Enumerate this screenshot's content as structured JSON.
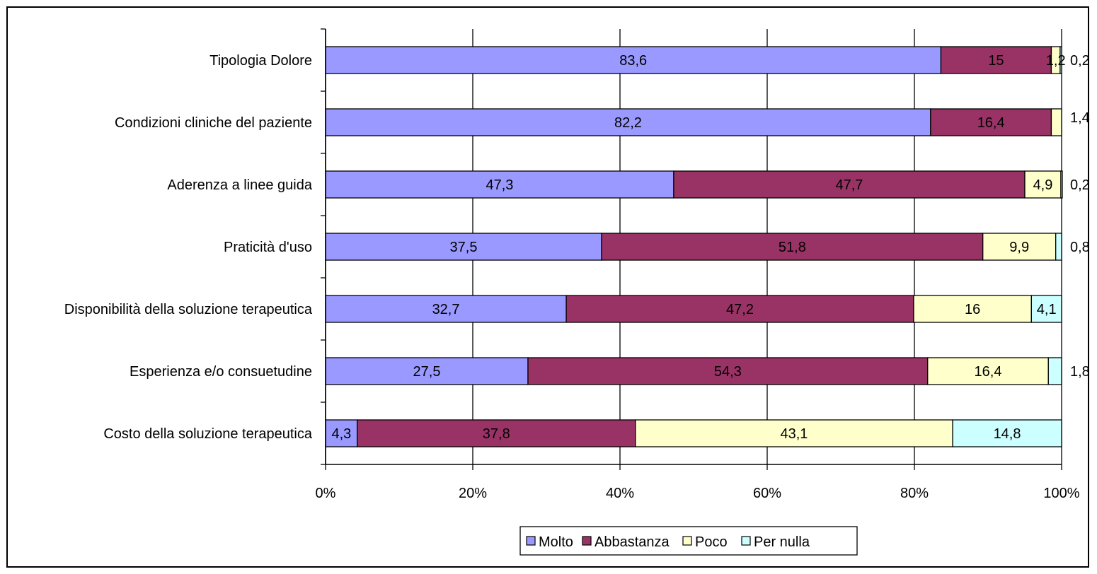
{
  "chart_data": {
    "type": "bar",
    "orientation": "horizontal",
    "stacked": "percent",
    "title": "",
    "xlabel": "",
    "ylabel": "",
    "xlim": [
      0,
      100
    ],
    "x_ticks": [
      "0%",
      "20%",
      "40%",
      "60%",
      "80%",
      "100%"
    ],
    "grid": "vertical",
    "legend_position": "bottom",
    "categories": [
      "Tipologia Dolore",
      "Condizioni cliniche del paziente",
      "Aderenza a linee guida",
      "Praticità d'uso",
      "Disponibilità della soluzione terapeutica",
      "Esperienza e/o consuetudine",
      "Costo della soluzione terapeutica"
    ],
    "series": [
      {
        "name": "Molto",
        "color": "#9999ff",
        "values": [
          83.6,
          82.2,
          47.3,
          37.5,
          32.7,
          27.5,
          4.3
        ],
        "labels": [
          "83,6",
          "82,2",
          "47,3",
          "37,5",
          "32,7",
          "27,5",
          "4,3"
        ]
      },
      {
        "name": "Abbastanza",
        "color": "#993366",
        "values": [
          15,
          16.4,
          47.7,
          51.8,
          47.2,
          54.3,
          37.8
        ],
        "labels": [
          "15",
          "16,4",
          "47,7",
          "51,8",
          "47,2",
          "54,3",
          "37,8"
        ]
      },
      {
        "name": "Poco",
        "color": "#ffffcc",
        "values": [
          1.2,
          1.4,
          4.9,
          9.9,
          16,
          16.4,
          43.1
        ],
        "labels": [
          "1,2",
          "",
          "4,9",
          "9,9",
          "16",
          "16,4",
          "43,1"
        ]
      },
      {
        "name": "Per nulla",
        "color": "#ccffff",
        "values": [
          0.2,
          0,
          0.2,
          0.8,
          4.1,
          1.8,
          14.8
        ],
        "labels": [
          "",
          "",
          "",
          "",
          "4,1",
          "",
          "14,8"
        ]
      }
    ],
    "outside_labels": [
      "0,2",
      "1,4",
      "0,2",
      "0,8",
      "",
      "1,8",
      ""
    ]
  }
}
